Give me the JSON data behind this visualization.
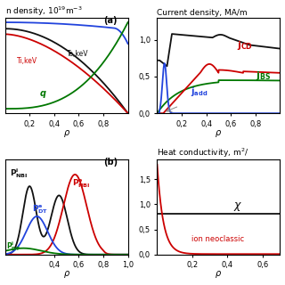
{
  "fig_width": 3.2,
  "fig_height": 3.2,
  "dpi": 100,
  "bg_color": "#ffffff",
  "panel_bg": "#ffffff",
  "title_fontsize": 6.5,
  "tick_fontsize": 6,
  "label_fontsize": 6.5,
  "top_left": {
    "title": "n density, 10$^{19}$m$^{-3}$",
    "panel_label": "(a)",
    "yticks": [],
    "xticks": [
      0.2,
      0.4,
      0.6,
      0.8
    ],
    "xticklabels": [
      "0,2",
      "0,4",
      "0,6",
      "0,8"
    ],
    "xlim": [
      0,
      1.0
    ],
    "ylim": [
      0,
      1.05
    ]
  },
  "top_right": {
    "title": "Current density, MA/m",
    "yticks": [
      0.0,
      0.5,
      1.0
    ],
    "yticklabels": [
      "0,0",
      "0,5",
      "1,0"
    ],
    "xticks": [
      0.2,
      0.4,
      0.6,
      0.8
    ],
    "xticklabels": [
      "0,2",
      "0,4",
      "0,6",
      "0,8"
    ],
    "xlim": [
      0,
      1.0
    ],
    "ylim": [
      0,
      1.3
    ]
  },
  "bottom_left": {
    "panel_label": "(b)",
    "yticks": [],
    "xticks": [
      0.4,
      0.6,
      0.8,
      1.0
    ],
    "xticklabels": [
      "0,4",
      "0,6",
      "0,8",
      "1,0"
    ],
    "xlim": [
      0,
      1.0
    ],
    "ylim": [
      0,
      1.05
    ]
  },
  "bottom_right": {
    "title": "Heat conductivity, m$^2$/",
    "yticks": [
      0.0,
      0.5,
      1.0,
      1.5
    ],
    "yticklabels": [
      "0,0",
      "0,5",
      "1,0",
      "1,5"
    ],
    "xticks": [
      0.2,
      0.4,
      0.6
    ],
    "xticklabels": [
      "0,2",
      "0,4",
      "0,6"
    ],
    "xlim": [
      0,
      0.7
    ],
    "ylim": [
      0,
      1.9
    ]
  },
  "colors": {
    "black": "#111111",
    "red": "#cc0000",
    "green": "#007700",
    "blue": "#2244dd",
    "gray": "#888888"
  }
}
